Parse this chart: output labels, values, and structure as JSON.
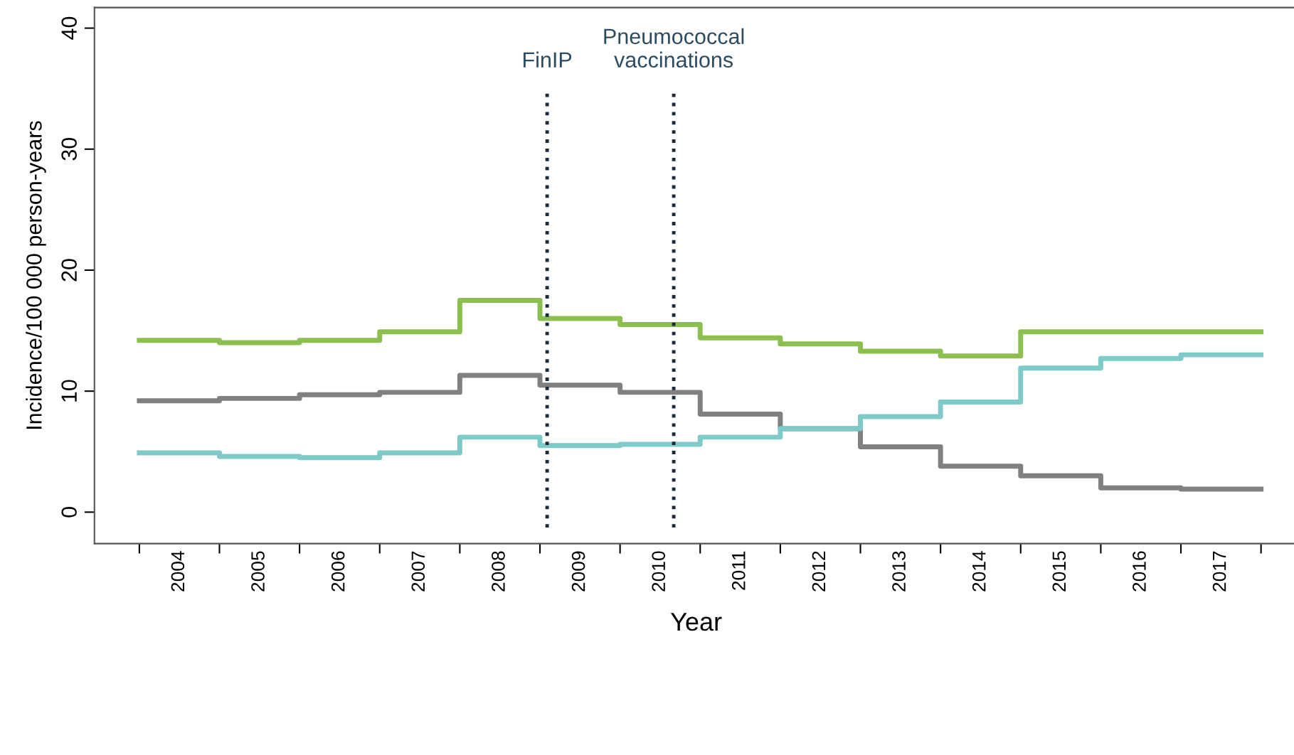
{
  "chart_data": {
    "type": "step",
    "xlabel": "Year",
    "ylabel": "Incidence/100 000 person-years",
    "x": [
      2004,
      2005,
      2006,
      2007,
      2008,
      2009,
      2010,
      2011,
      2012,
      2013,
      2014,
      2015,
      2016,
      2017,
      2018
    ],
    "series": [
      {
        "color": "#8bbf4f",
        "values": [
          14.2,
          14.0,
          14.2,
          14.9,
          17.5,
          16.0,
          15.5,
          14.4,
          13.9,
          13.3,
          12.9,
          14.9,
          14.9,
          14.9,
          14.9
        ]
      },
      {
        "color": "#808080",
        "values": [
          9.2,
          9.4,
          9.7,
          9.9,
          11.3,
          10.5,
          9.9,
          8.1,
          6.9,
          5.4,
          3.8,
          3.0,
          2.0,
          1.9,
          1.9
        ]
      },
      {
        "color": "#7ecac8",
        "values": [
          4.9,
          4.6,
          4.5,
          4.9,
          6.2,
          5.5,
          5.6,
          6.2,
          6.9,
          7.9,
          9.1,
          11.9,
          12.7,
          13.0,
          13.0
        ]
      }
    ],
    "xlim": [
      2003.44,
      2018.46
    ],
    "ylim": [
      -2.6,
      41.7
    ],
    "xticks": [
      {
        "value": 2004,
        "label": null
      },
      {
        "value": 2004.5,
        "label": "2004"
      },
      {
        "value": 2005,
        "label": null
      },
      {
        "value": 2005.5,
        "label": "2005"
      },
      {
        "value": 2006,
        "label": null
      },
      {
        "value": 2006.5,
        "label": "2006"
      },
      {
        "value": 2007,
        "label": null
      },
      {
        "value": 2007.5,
        "label": "2007"
      },
      {
        "value": 2008,
        "label": null
      },
      {
        "value": 2008.5,
        "label": "2008"
      },
      {
        "value": 2009,
        "label": null
      },
      {
        "value": 2009.5,
        "label": "2009"
      },
      {
        "value": 2010,
        "label": null
      },
      {
        "value": 2010.5,
        "label": "2010"
      },
      {
        "value": 2011,
        "label": null
      },
      {
        "value": 2011.5,
        "label": "2011"
      },
      {
        "value": 2012,
        "label": null
      },
      {
        "value": 2012.5,
        "label": "2012"
      },
      {
        "value": 2013,
        "label": null
      },
      {
        "value": 2013.5,
        "label": "2013"
      },
      {
        "value": 2014,
        "label": null
      },
      {
        "value": 2014.5,
        "label": "2014"
      },
      {
        "value": 2015,
        "label": null
      },
      {
        "value": 2015.5,
        "label": "2015"
      },
      {
        "value": 2016,
        "label": null
      },
      {
        "value": 2016.5,
        "label": "2016"
      },
      {
        "value": 2017,
        "label": null
      },
      {
        "value": 2017.5,
        "label": "2017"
      },
      {
        "value": 2018,
        "label": null
      }
    ],
    "yticks": [
      0,
      10,
      20,
      30,
      40
    ],
    "ref_lines": [
      {
        "axis": "x",
        "value": 2009.09,
        "label": "FinIP",
        "color": "#1a2a3a",
        "line_style": "dotted"
      },
      {
        "axis": "x",
        "value": 2010.67,
        "label": "Pneumococcal\nvaccinations",
        "color": "#1a2a3a",
        "line_style": "dotted"
      }
    ],
    "grid": false,
    "legend": false,
    "line_style": "solid"
  }
}
